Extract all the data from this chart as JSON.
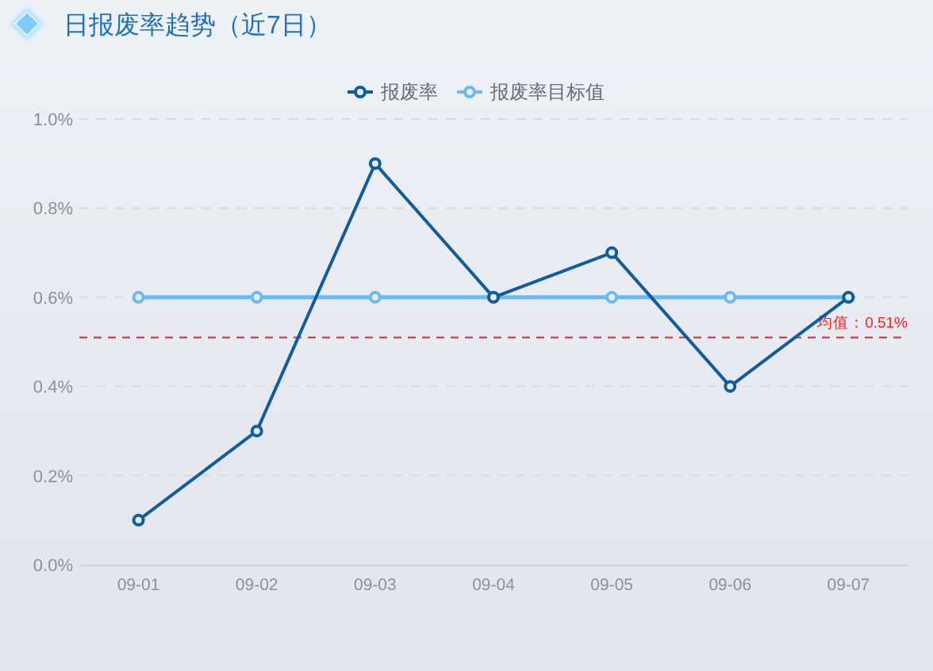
{
  "chart_data": {
    "type": "line",
    "title": "日报废率趋势（近7日）",
    "categories": [
      "09-01",
      "09-02",
      "09-03",
      "09-04",
      "09-05",
      "09-06",
      "09-07"
    ],
    "series": [
      {
        "name": "报废率",
        "color": "#0f5c9e",
        "values": [
          0.1,
          0.3,
          0.9,
          0.6,
          0.7,
          0.4,
          0.6
        ]
      },
      {
        "name": "报废率目标值",
        "color": "#6cb9f2",
        "values": [
          0.6,
          0.6,
          0.6,
          0.6,
          0.6,
          0.6,
          0.6
        ]
      }
    ],
    "ylim": [
      0,
      1
    ],
    "yticks": [
      {
        "value": 0,
        "label": "0.0%"
      },
      {
        "value": 0.2,
        "label": "0.2%"
      },
      {
        "value": 0.4,
        "label": "0.4%"
      },
      {
        "value": 0.6,
        "label": "0.6%"
      },
      {
        "value": 0.8,
        "label": "0.8%"
      },
      {
        "value": 1,
        "label": "1.0%"
      }
    ],
    "ref_lines": [
      {
        "axis": "y",
        "value": 0.51,
        "label": "均值：0.51%",
        "color": "#c9302c",
        "line_style": "dashed"
      }
    ],
    "grid": "y",
    "legend": "top",
    "marker": "circle",
    "line_style": "solid"
  }
}
